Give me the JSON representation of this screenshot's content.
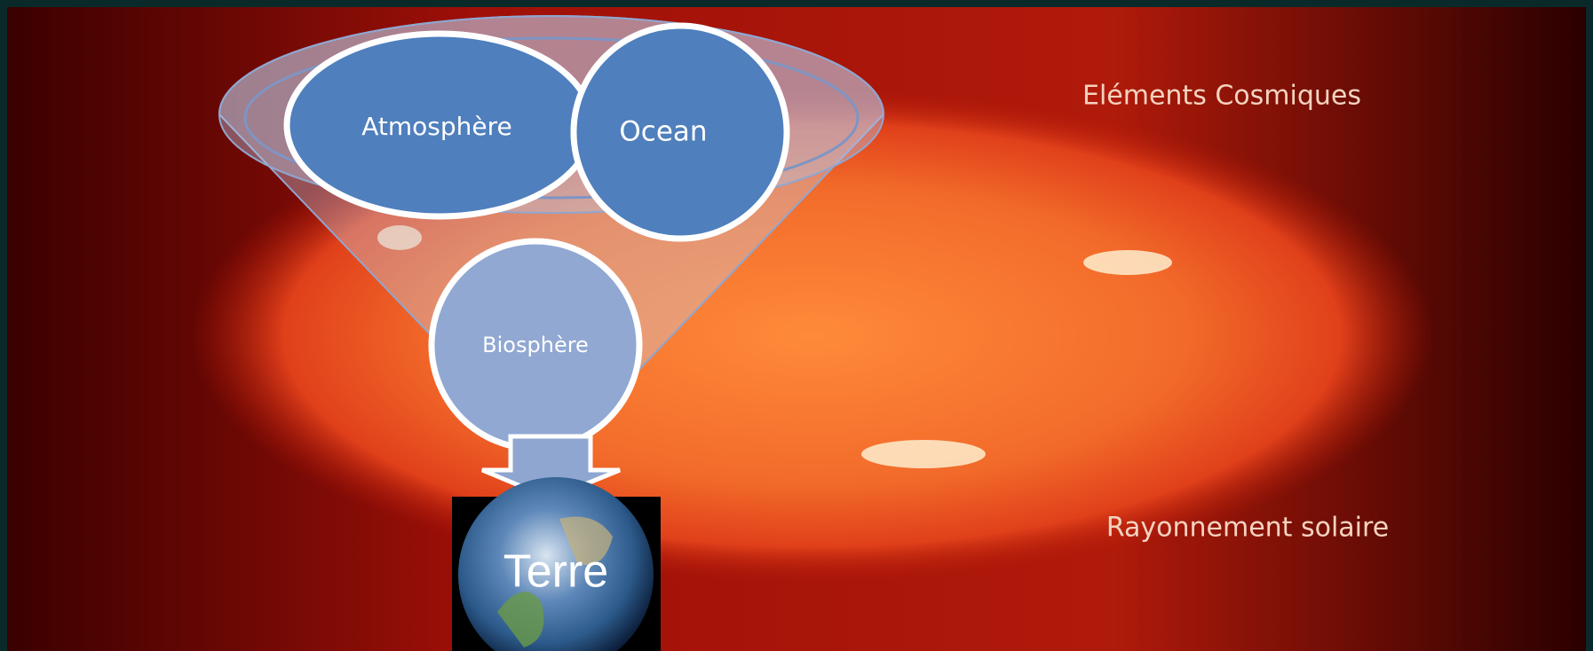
{
  "labels": {
    "cosmic": "Eléments Cosmiques",
    "solar": "Rayonnement solaire"
  },
  "nodes": [
    {
      "label": "Atmosphère"
    },
    {
      "label": "Ocean"
    },
    {
      "label": "Biosphère"
    },
    {
      "label": "Terre"
    }
  ]
}
